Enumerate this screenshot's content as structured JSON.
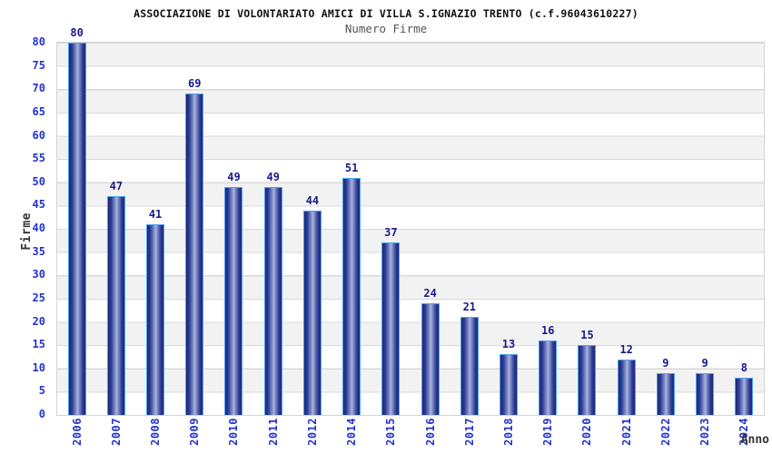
{
  "chart_data": {
    "type": "bar",
    "title": "ASSOCIAZIONE DI VOLONTARIATO AMICI DI VILLA S.IGNAZIO TRENTO (c.f.96043610227)",
    "subtitle": "Numero Firme",
    "xlabel": "Anno",
    "ylabel": "Firme",
    "categories": [
      "2006",
      "2007",
      "2008",
      "2009",
      "2010",
      "2011",
      "2012",
      "2014",
      "2015",
      "2016",
      "2017",
      "2018",
      "2019",
      "2020",
      "2021",
      "2022",
      "2023",
      "2024"
    ],
    "values": [
      80,
      47,
      41,
      69,
      49,
      49,
      44,
      51,
      37,
      24,
      21,
      13,
      16,
      15,
      12,
      9,
      9,
      8
    ],
    "ylim": [
      0,
      80
    ],
    "ytick_step": 5,
    "grid": "horizontal-alternating-bands",
    "legend": "none",
    "colors": {
      "axis_label_blue": "#2233cc",
      "value_label_navy": "#1a1a8c",
      "title": "#111111",
      "subtitle": "#555555",
      "axis_title": "#333333",
      "band_gray": "#f2f2f2",
      "gridline": "#d9d9d9",
      "plot_border": "#d4d4d4",
      "bar_edge": "#1e2878",
      "bar_highlight": "#a9b2e0",
      "bar_border_lightblue": "#4ba3ef"
    }
  }
}
